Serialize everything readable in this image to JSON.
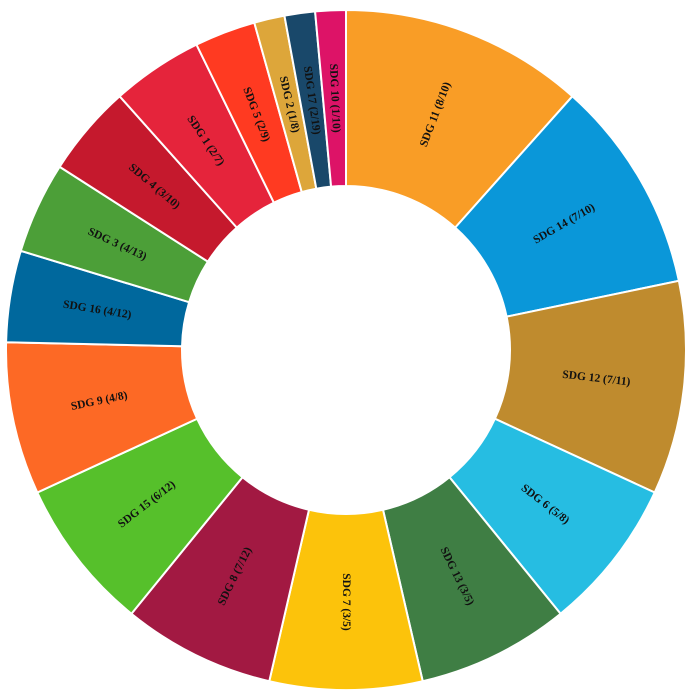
{
  "chart_data": {
    "type": "pie",
    "donut": true,
    "title": "",
    "start": "12 o'clock, clockwise",
    "slices": [
      {
        "label": "SDG 11 (8/10)",
        "value": 8,
        "color": "#F99D26"
      },
      {
        "label": "SDG 14 (7/10)",
        "value": 7,
        "color": "#0A97D9"
      },
      {
        "label": "SDG 12 (7/11)",
        "value": 7,
        "color": "#BF8B2E"
      },
      {
        "label": "SDG 6 (5/8)",
        "value": 5,
        "color": "#26BDE2"
      },
      {
        "label": "SDG 13 (3/5)",
        "value": 5,
        "color": "#3F7E44"
      },
      {
        "label": "SDG 7 (3/5)",
        "value": 5,
        "color": "#FCC30B"
      },
      {
        "label": "SDG 8 (7/12)",
        "value": 5,
        "color": "#A21942"
      },
      {
        "label": "SDG 15 (6/12)",
        "value": 5,
        "color": "#56C02B"
      },
      {
        "label": "SDG 9 (4/8)",
        "value": 5,
        "color": "#FD6925"
      },
      {
        "label": "SDG 16 (4/12)",
        "value": 3,
        "color": "#00689D"
      },
      {
        "label": "SDG 3 (4/13)",
        "value": 3,
        "color": "#4C9F38"
      },
      {
        "label": "SDG 4 (3/10)",
        "value": 3,
        "color": "#C5192D"
      },
      {
        "label": "SDG 1 (2/7)",
        "value": 3,
        "color": "#E5243B"
      },
      {
        "label": "SDG 5 (2/9)",
        "value": 2,
        "color": "#FF3A21"
      },
      {
        "label": "SDG 2 (1/8)",
        "value": 1,
        "color": "#DDA63A"
      },
      {
        "label": "SDG 17 (2/19)",
        "value": 1,
        "color": "#19486A"
      },
      {
        "label": "SDG 10 (1/10)",
        "value": 1,
        "color": "#DD1367"
      }
    ]
  }
}
